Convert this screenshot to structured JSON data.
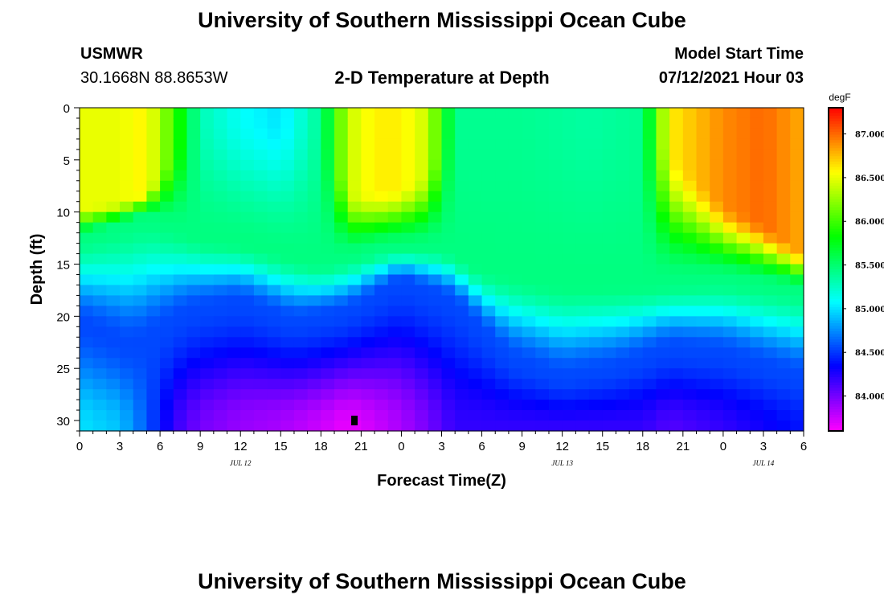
{
  "header": {
    "title": "University of Southern Mississippi Ocean Cube",
    "station": "USMWR",
    "coords": "30.1668N  88.8653W",
    "plot_title": "2-D Temperature at Depth",
    "model_label": "Model Start Time",
    "model_time": "07/12/2021 Hour 03"
  },
  "footer": {
    "title": "University of Southern Mississippi Ocean Cube"
  },
  "colors": {
    "background": "#ffffff",
    "axis": "#000000"
  },
  "chart_data": {
    "type": "heatmap",
    "title": "2-D Temperature at Depth",
    "xlabel": "Forecast Time(Z)",
    "ylabel": "Depth (ft)",
    "x_tick_labels": [
      "0",
      "3",
      "6",
      "9",
      "12",
      "15",
      "18",
      "21",
      "0",
      "3",
      "6",
      "9",
      "12",
      "15",
      "18",
      "21",
      "0",
      "3",
      "6"
    ],
    "x_range_hours": [
      0,
      54
    ],
    "date_labels": [
      {
        "label": "JUL 12",
        "hour": 12
      },
      {
        "label": "JUL 13",
        "hour": 36
      },
      {
        "label": "JUL 14",
        "hour": 51
      }
    ],
    "y_ticks": [
      0,
      5,
      10,
      15,
      20,
      25,
      30
    ],
    "y_range_ft": [
      0,
      31
    ],
    "y_inverted": true,
    "colorbar": {
      "unit": "degF",
      "min": 83.6,
      "max": 87.3,
      "tick_labels": [
        "87.000",
        "86.500",
        "86.000",
        "85.500",
        "85.000",
        "84.500",
        "84.000"
      ],
      "tick_values": [
        87.0,
        86.5,
        86.0,
        85.5,
        85.0,
        84.5,
        84.0
      ]
    },
    "marker": {
      "hour": 20.5,
      "depth_ft": 30
    },
    "temperature_profile": {
      "columns": [
        {
          "hour": 0,
          "surface": 86.5,
          "mix_depth": 9.5,
          "bottom": 85.0
        },
        {
          "hour": 3,
          "surface": 86.5,
          "mix_depth": 9.0,
          "bottom": 84.9
        },
        {
          "hour": 5,
          "surface": 86.6,
          "mix_depth": 8.0,
          "bottom": 84.6
        },
        {
          "hour": 7,
          "surface": 86.0,
          "mix_depth": 4.0,
          "bottom": 84.2
        },
        {
          "hour": 9,
          "surface": 85.3,
          "mix_depth": 0.5,
          "bottom": 84.0
        },
        {
          "hour": 12,
          "surface": 85.1,
          "mix_depth": 0.5,
          "bottom": 83.9
        },
        {
          "hour": 15,
          "surface": 85.0,
          "mix_depth": 0.5,
          "bottom": 83.85
        },
        {
          "hour": 18,
          "surface": 85.4,
          "mix_depth": 0.5,
          "bottom": 83.75
        },
        {
          "hour": 20,
          "surface": 86.4,
          "mix_depth": 8.0,
          "bottom": 83.65
        },
        {
          "hour": 22,
          "surface": 86.6,
          "mix_depth": 8.0,
          "bottom": 83.75
        },
        {
          "hour": 24,
          "surface": 86.6,
          "mix_depth": 7.5,
          "bottom": 83.85
        },
        {
          "hour": 26,
          "surface": 86.4,
          "mix_depth": 6.0,
          "bottom": 84.0
        },
        {
          "hour": 28,
          "surface": 85.4,
          "mix_depth": 0.5,
          "bottom": 84.2
        },
        {
          "hour": 33,
          "surface": 85.4,
          "mix_depth": 0.5,
          "bottom": 84.2
        },
        {
          "hour": 38,
          "surface": 85.35,
          "mix_depth": 0.5,
          "bottom": 84.2
        },
        {
          "hour": 42,
          "surface": 85.4,
          "mix_depth": 0.5,
          "bottom": 84.2
        },
        {
          "hour": 44,
          "surface": 86.6,
          "mix_depth": 4.0,
          "bottom": 84.1
        },
        {
          "hour": 48,
          "surface": 86.9,
          "mix_depth": 9.0,
          "bottom": 84.2
        },
        {
          "hour": 51,
          "surface": 87.0,
          "mix_depth": 11.0,
          "bottom": 84.3
        },
        {
          "hour": 54,
          "surface": 86.8,
          "mix_depth": 14.0,
          "bottom": 84.4
        }
      ],
      "cline_top_depth": [
        {
          "hour": 0,
          "depth": 12.5
        },
        {
          "hour": 5,
          "depth": 10.5
        },
        {
          "hour": 9,
          "depth": 12.5
        },
        {
          "hour": 12,
          "depth": 13.0
        },
        {
          "hour": 18,
          "depth": 15.0
        },
        {
          "hour": 23,
          "depth": 13.5
        },
        {
          "hour": 27,
          "depth": 13.5
        },
        {
          "hour": 30,
          "depth": 15.5
        },
        {
          "hour": 36,
          "depth": 17.0
        },
        {
          "hour": 42,
          "depth": 17.0
        },
        {
          "hour": 48,
          "depth": 16.5
        },
        {
          "hour": 54,
          "depth": 17.5
        }
      ],
      "cline_bottom_depth": [
        {
          "hour": 0,
          "depth": 20.5
        },
        {
          "hour": 4,
          "depth": 23.0
        },
        {
          "hour": 8,
          "depth": 19.5
        },
        {
          "hour": 12,
          "depth": 18.5
        },
        {
          "hour": 16,
          "depth": 20.5
        },
        {
          "hour": 20,
          "depth": 19.5
        },
        {
          "hour": 24,
          "depth": 16.5
        },
        {
          "hour": 28,
          "depth": 18.5
        },
        {
          "hour": 32,
          "depth": 24.0
        },
        {
          "hour": 36,
          "depth": 26.0
        },
        {
          "hour": 40,
          "depth": 25.0
        },
        {
          "hour": 44,
          "depth": 23.0
        },
        {
          "hour": 48,
          "depth": 23.5
        },
        {
          "hour": 54,
          "depth": 26.0
        }
      ]
    }
  }
}
